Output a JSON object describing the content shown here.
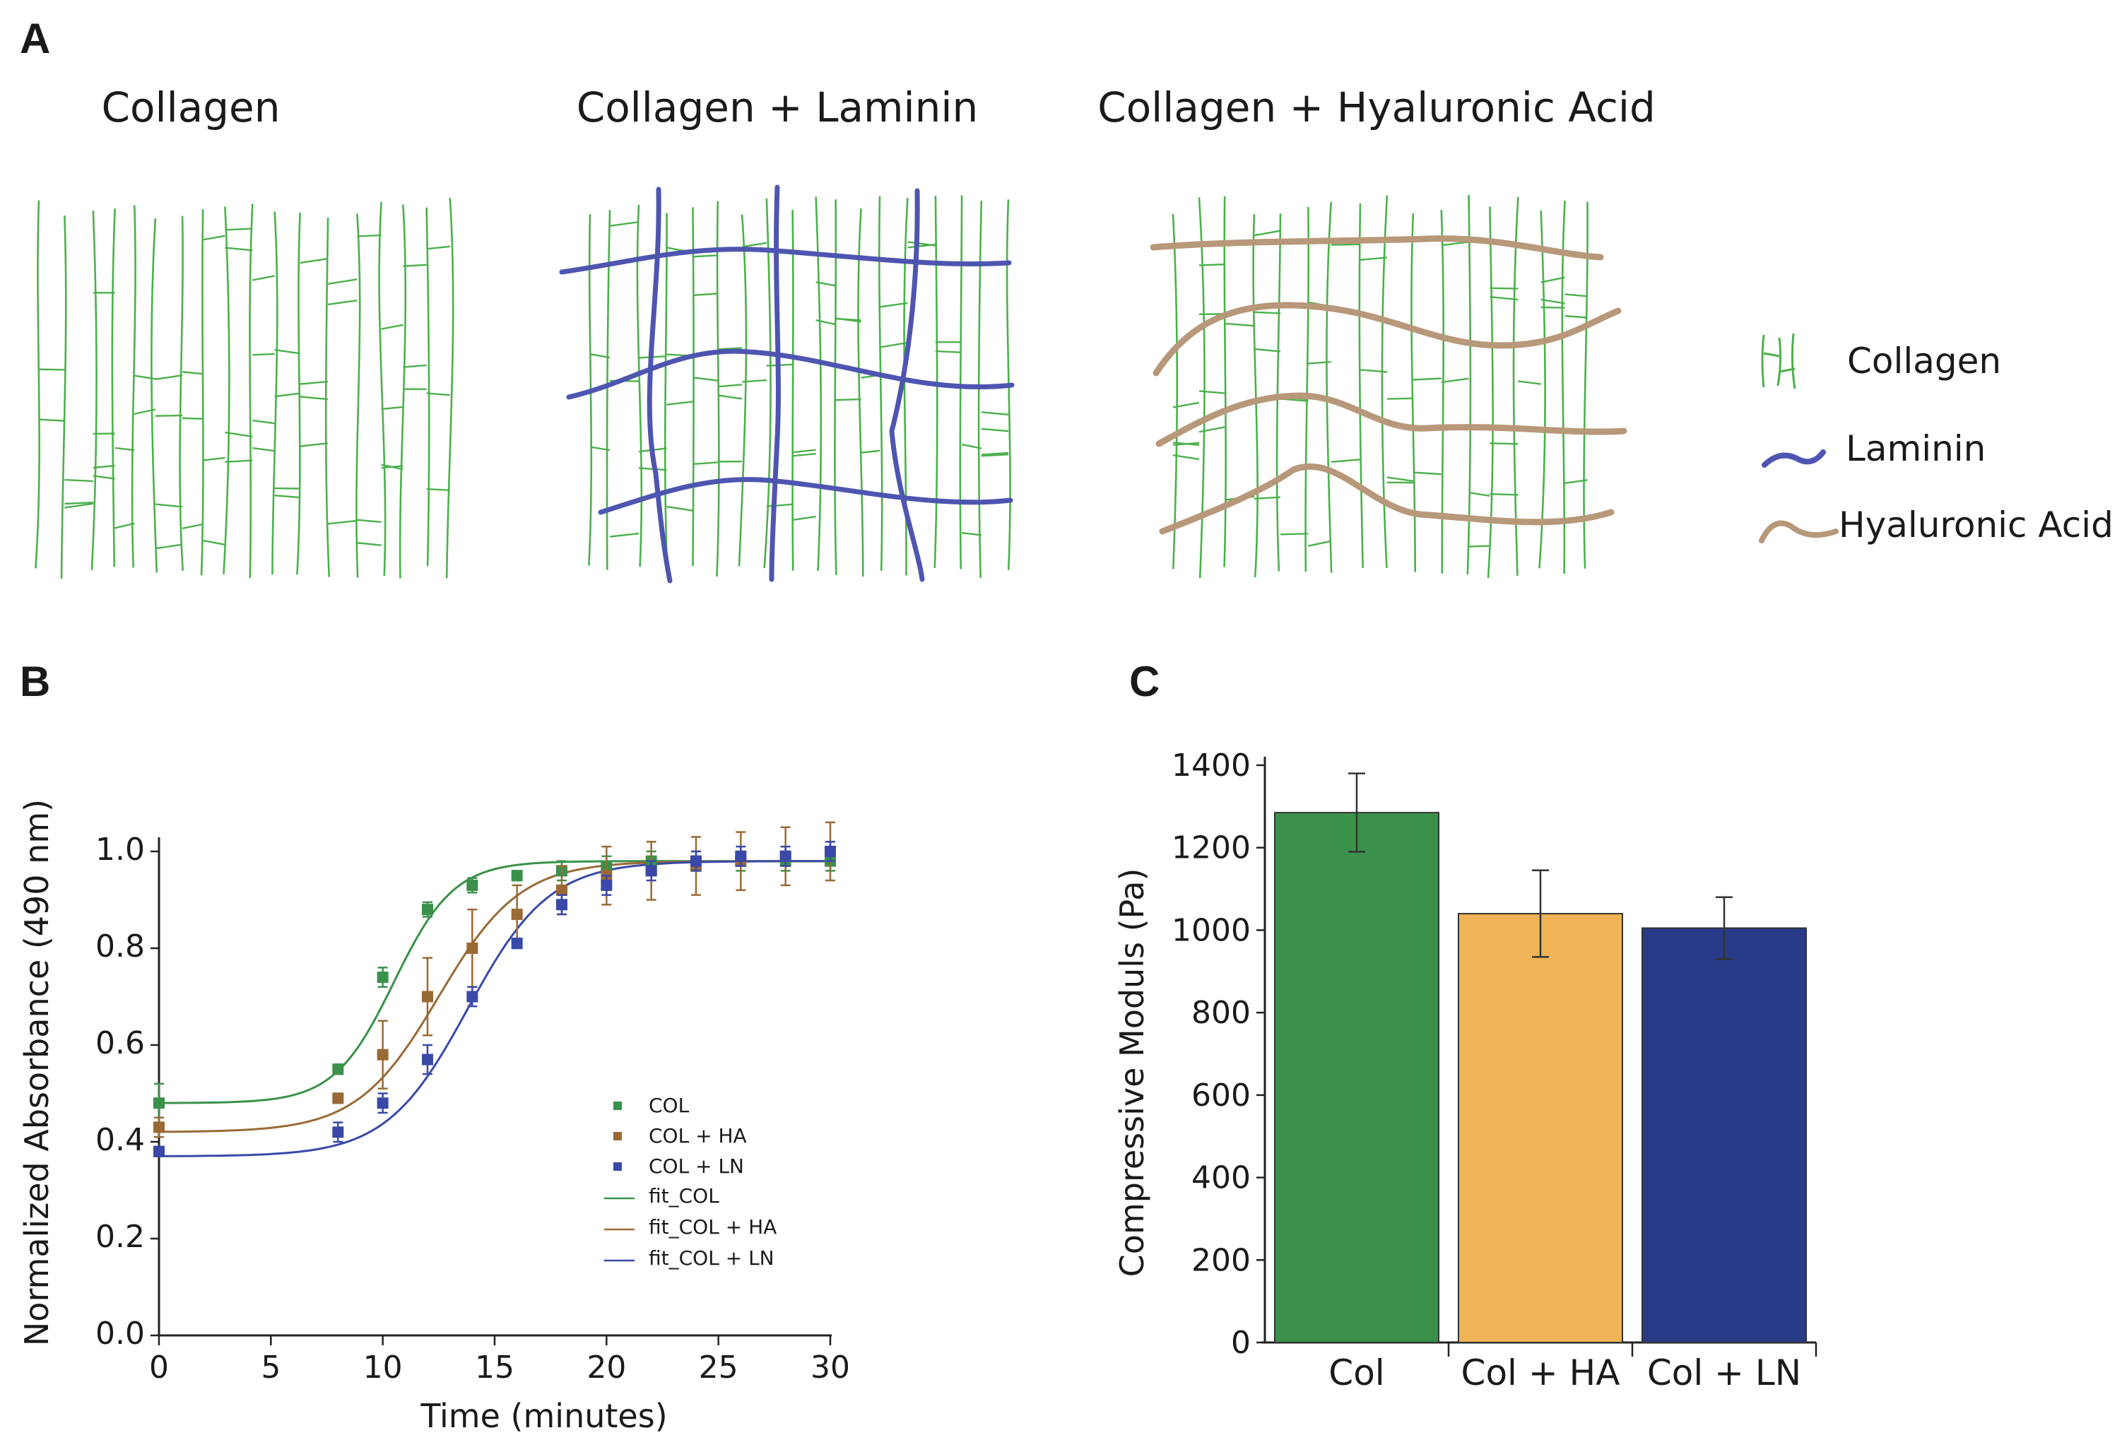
{
  "colors": {
    "collagen": "#4cb04c",
    "laminin": "#4e55b0",
    "hyaluronic": "#b8987a",
    "col": "#3a914a",
    "colha": "#9a6a35",
    "colln": "#3a49a8",
    "bar_col": "#3a914a",
    "bar_ha": "#f0b457",
    "bar_ln": "#283a88"
  },
  "panel_a": {
    "letter": "A",
    "titles": [
      "Collagen",
      "Collagen + Laminin",
      "Collagen + Hyaluronic Acid"
    ],
    "legend": [
      "Collagen",
      "Laminin",
      "Hyaluronic Acid"
    ]
  },
  "chart_data": [
    {
      "panel": "B",
      "type": "scatter",
      "xlabel": "Time (minutes)",
      "ylabel": "Normalized Absorbance (490 nm)",
      "xlim": [
        0,
        30
      ],
      "ylim": [
        0,
        1.0
      ],
      "xticks": [
        "0",
        "5",
        "10",
        "15",
        "20",
        "25",
        "30"
      ],
      "yticks": [
        "0.0",
        "0.2",
        "0.4",
        "0.6",
        "0.8",
        "1.0"
      ],
      "legend": [
        "COL",
        "COL + HA",
        "COL + LN",
        "fit_COL",
        "fit_COL + HA",
        "fit_COL + LN"
      ],
      "series": [
        {
          "name": "COL",
          "x": [
            0,
            8,
            10,
            12,
            14,
            16,
            18,
            20,
            22,
            24,
            26,
            28,
            30
          ],
          "y": [
            0.48,
            0.55,
            0.74,
            0.88,
            0.93,
            0.95,
            0.96,
            0.97,
            0.98,
            0.98,
            0.98,
            0.98,
            0.98
          ],
          "err": [
            0.04,
            0.01,
            0.02,
            0.015,
            0.015,
            0.01,
            0.02,
            0.02,
            0.02,
            0.02,
            0.02,
            0.02,
            0.02
          ]
        },
        {
          "name": "COL + HA",
          "x": [
            0,
            8,
            10,
            12,
            14,
            16,
            18,
            20,
            22,
            24,
            26,
            28,
            30
          ],
          "y": [
            0.43,
            0.49,
            0.58,
            0.7,
            0.8,
            0.87,
            0.92,
            0.95,
            0.96,
            0.97,
            0.98,
            0.99,
            1.0
          ],
          "err": [
            0.02,
            0.01,
            0.07,
            0.08,
            0.08,
            0.06,
            0.05,
            0.06,
            0.06,
            0.06,
            0.06,
            0.06,
            0.06
          ]
        },
        {
          "name": "COL + LN",
          "x": [
            0,
            8,
            10,
            12,
            14,
            16,
            18,
            20,
            22,
            24,
            26,
            28,
            30
          ],
          "y": [
            0.38,
            0.42,
            0.48,
            0.57,
            0.7,
            0.81,
            0.89,
            0.93,
            0.96,
            0.98,
            0.99,
            0.99,
            1.0
          ],
          "err": [
            0.01,
            0.02,
            0.02,
            0.03,
            0.02,
            0.01,
            0.02,
            0.02,
            0.02,
            0.02,
            0.02,
            0.02,
            0.02
          ]
        }
      ],
      "fits": [
        {
          "name": "fit_COL",
          "min": 0.48,
          "max": 0.98,
          "x0": 10.5,
          "k": 0.75
        },
        {
          "name": "fit_COL + HA",
          "min": 0.42,
          "max": 0.98,
          "x0": 12.5,
          "k": 0.55
        },
        {
          "name": "fit_COL + LN",
          "min": 0.37,
          "max": 0.98,
          "x0": 13.8,
          "k": 0.55
        }
      ]
    },
    {
      "panel": "C",
      "type": "bar",
      "ylabel": "Compressive Moduls (Pa)",
      "ylim": [
        0,
        1400
      ],
      "yticks": [
        "0",
        "200",
        "400",
        "600",
        "800",
        "1000",
        "1200",
        "1400"
      ],
      "categories": [
        "Col",
        "Col + HA",
        "Col + LN"
      ],
      "values": [
        1285,
        1040,
        1005
      ],
      "errors": [
        95,
        105,
        75
      ]
    }
  ]
}
